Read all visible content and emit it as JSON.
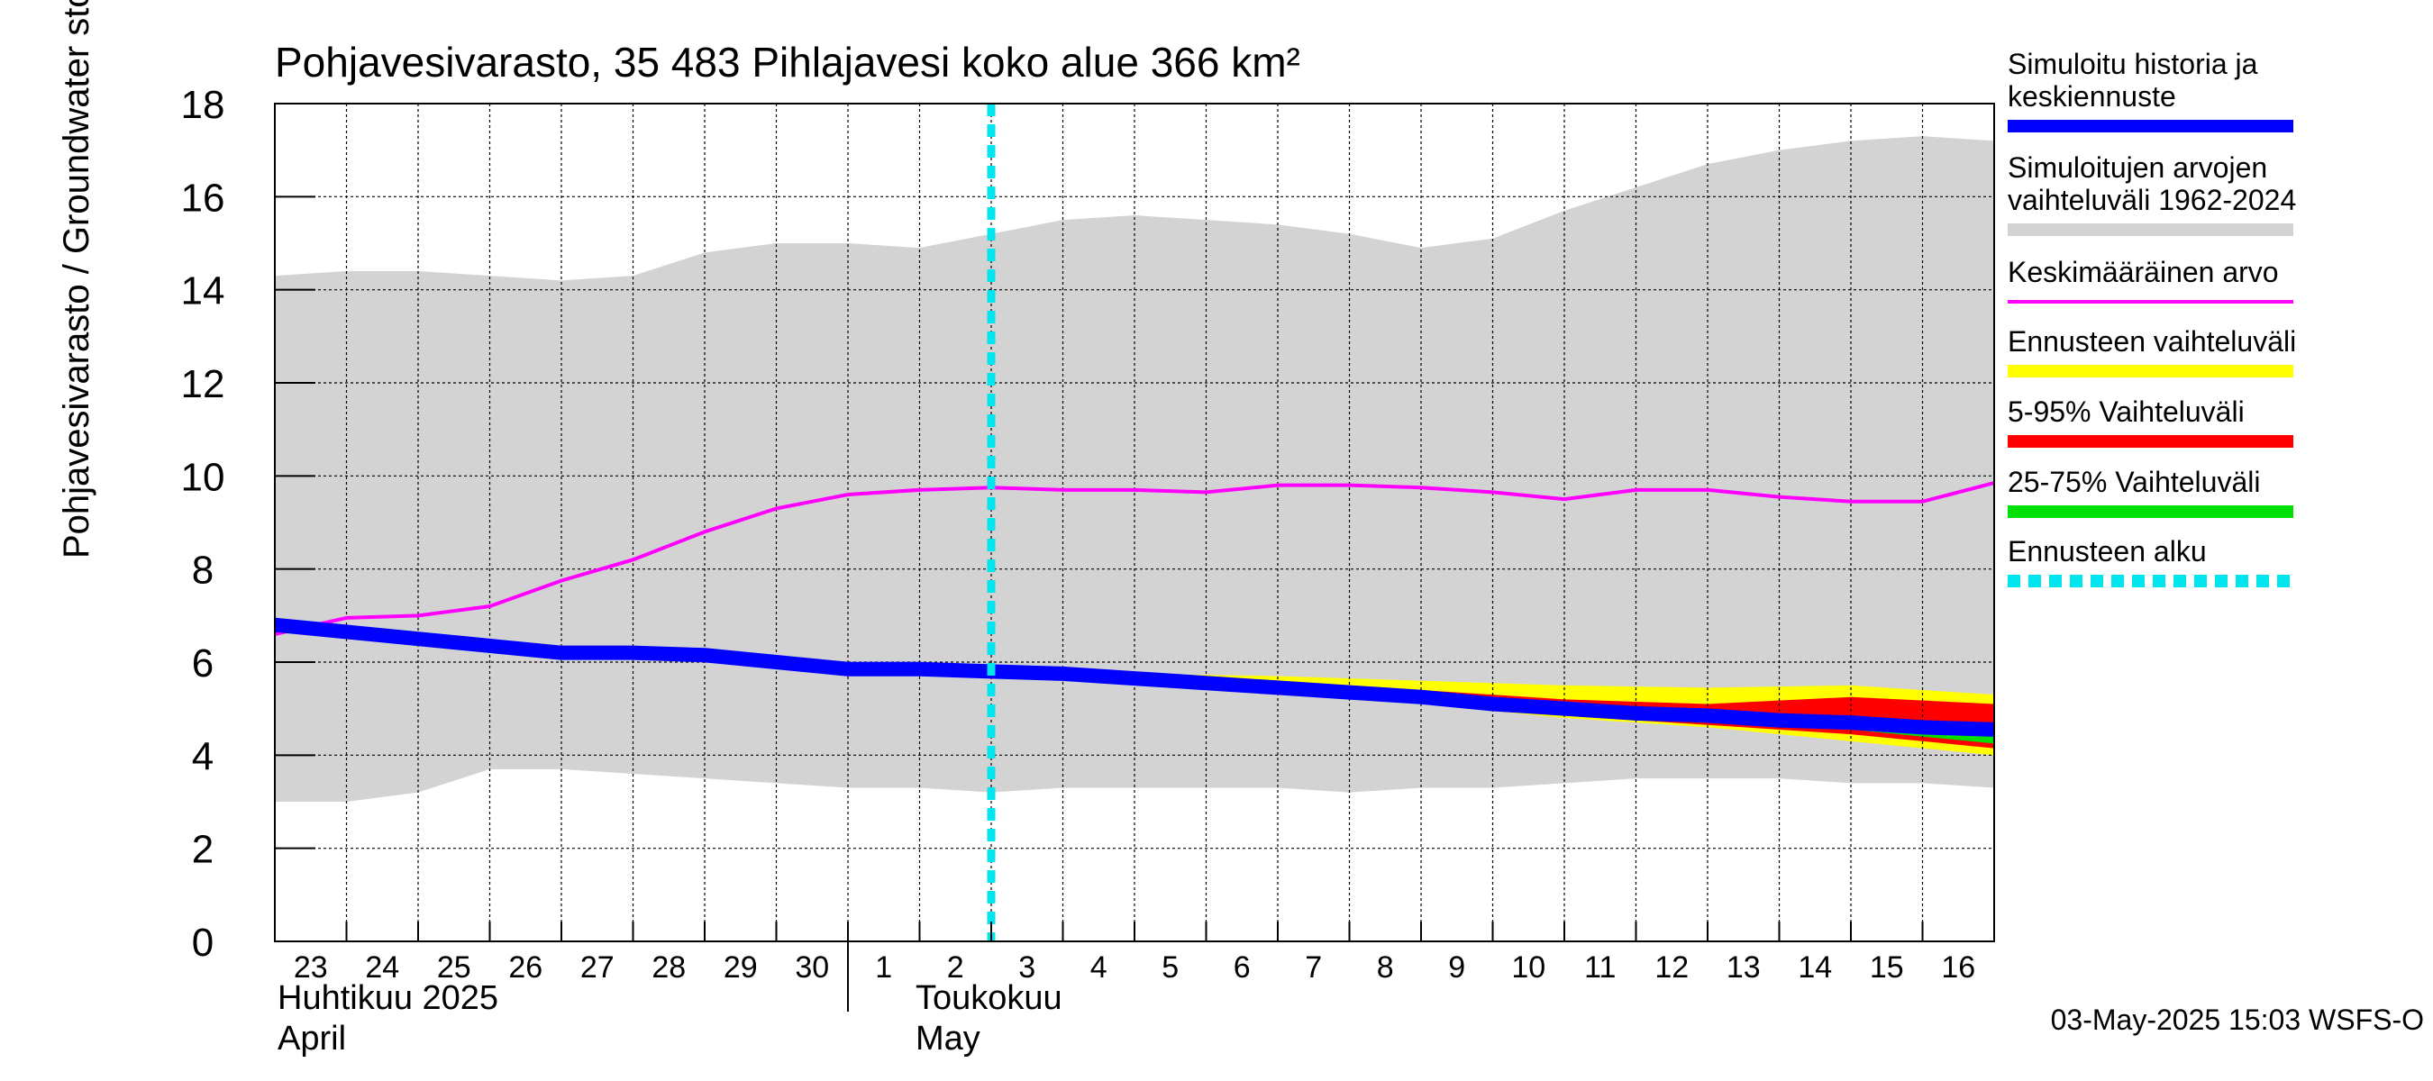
{
  "chart_data": {
    "type": "area",
    "title": "Pohjavesivarasto, 35 483 Pihlajavesi koko alue 366 km²",
    "ylabel": "Pohjavesivarasto / Groundwater storage   mm",
    "ylim": [
      0,
      18
    ],
    "yticks": [
      "0",
      "2",
      "4",
      "6",
      "8",
      "10",
      "12",
      "14",
      "16",
      "18"
    ],
    "grid": true,
    "xlim": [
      0,
      24
    ],
    "x_tick_labels": [
      "23",
      "24",
      "25",
      "26",
      "27",
      "28",
      "29",
      "30",
      "1",
      "2",
      "3",
      "4",
      "5",
      "6",
      "7",
      "8",
      "9",
      "10",
      "11",
      "12",
      "13",
      "14",
      "15",
      "16"
    ],
    "month_labels": [
      {
        "line1": "Huhtikuu  2025",
        "line2": "April",
        "x": 0
      },
      {
        "line1": "Toukokuu",
        "line2": "May",
        "x": 8
      }
    ],
    "forecast_start_x": 10,
    "series": [
      {
        "name": "Simuloitujen arvojen vaihteluväli 1962-2024",
        "kind": "band",
        "color": "#d3d3d3",
        "x": [
          0,
          1,
          2,
          3,
          4,
          5,
          6,
          7,
          8,
          9,
          10,
          11,
          12,
          13,
          14,
          15,
          16,
          17,
          18,
          19,
          20,
          21,
          22,
          23,
          24
        ],
        "upper": [
          14.3,
          14.4,
          14.4,
          14.3,
          14.2,
          14.3,
          14.8,
          15.0,
          15.0,
          14.9,
          15.2,
          15.5,
          15.6,
          15.5,
          15.4,
          15.2,
          14.9,
          15.1,
          15.7,
          16.2,
          16.7,
          17.0,
          17.2,
          17.3,
          17.2
        ],
        "lower": [
          3.0,
          3.0,
          3.2,
          3.7,
          3.7,
          3.6,
          3.5,
          3.4,
          3.3,
          3.3,
          3.2,
          3.3,
          3.3,
          3.3,
          3.3,
          3.2,
          3.3,
          3.3,
          3.4,
          3.5,
          3.5,
          3.5,
          3.4,
          3.4,
          3.3
        ]
      },
      {
        "name": "Ennusteen vaihteluväli",
        "kind": "band",
        "color": "#ffff00",
        "x": [
          10,
          12,
          14,
          16,
          18,
          20,
          22,
          24
        ],
        "upper": [
          5.8,
          5.75,
          5.7,
          5.6,
          5.5,
          5.45,
          5.5,
          5.3
        ],
        "lower": [
          5.8,
          5.6,
          5.4,
          5.1,
          4.8,
          4.6,
          4.3,
          4.0
        ]
      },
      {
        "name": "5-95% Vaihteluväli",
        "kind": "band",
        "color": "#ff0000",
        "x": [
          10,
          12,
          14,
          16,
          18,
          20,
          22,
          24
        ],
        "upper": [
          5.8,
          5.7,
          5.6,
          5.4,
          5.2,
          5.1,
          5.25,
          5.1
        ],
        "lower": [
          5.8,
          5.6,
          5.35,
          5.15,
          4.85,
          4.65,
          4.45,
          4.15
        ]
      },
      {
        "name": "25-75% Vaihteluväli",
        "kind": "band",
        "color": "#00e000",
        "x": [
          10,
          12,
          14,
          16,
          18,
          20,
          22,
          24
        ],
        "upper": [
          5.8,
          5.7,
          5.5,
          5.3,
          5.05,
          4.85,
          4.7,
          4.7
        ],
        "lower": [
          5.8,
          5.65,
          5.4,
          5.15,
          4.9,
          4.7,
          4.55,
          4.25
        ]
      },
      {
        "name": "Keskimääräinen arvo",
        "kind": "line",
        "color": "#ff00ff",
        "x": [
          0,
          1,
          2,
          3,
          4,
          5,
          6,
          7,
          8,
          9,
          10,
          11,
          12,
          13,
          14,
          15,
          16,
          17,
          18,
          19,
          20,
          21,
          22,
          23,
          24
        ],
        "values": [
          6.6,
          6.95,
          7.0,
          7.2,
          7.75,
          8.2,
          8.8,
          9.3,
          9.6,
          9.7,
          9.75,
          9.7,
          9.7,
          9.65,
          9.8,
          9.8,
          9.75,
          9.65,
          9.5,
          9.7,
          9.7,
          9.55,
          9.45,
          9.45,
          9.85
        ]
      },
      {
        "name": "Simuloitu historia ja keskiennuste",
        "kind": "line",
        "color": "#0000ff",
        "x": [
          0,
          1,
          2,
          3,
          4,
          5,
          6,
          7,
          8,
          9,
          10,
          11,
          12,
          13,
          14,
          15,
          16,
          17,
          18,
          19,
          20,
          21,
          22,
          23,
          24
        ],
        "values": [
          6.8,
          6.65,
          6.5,
          6.35,
          6.2,
          6.2,
          6.15,
          6.0,
          5.85,
          5.85,
          5.8,
          5.75,
          5.65,
          5.55,
          5.45,
          5.35,
          5.25,
          5.1,
          5.0,
          4.9,
          4.85,
          4.75,
          4.7,
          4.6,
          4.55
        ]
      }
    ],
    "legend": {
      "placement": "right",
      "entries": [
        {
          "line1": "Simuloitu historia ja",
          "line2": "keskiennuste",
          "color": "#0000ff",
          "style": "solid"
        },
        {
          "line1": "Simuloitujen arvojen",
          "line2": "vaihteluväli 1962-2024",
          "color": "#d3d3d3",
          "style": "solid"
        },
        {
          "line1": "Keskimääräinen arvo",
          "line2": "",
          "color": "#ff00ff",
          "style": "solid"
        },
        {
          "line1": "Ennusteen vaihteluväli",
          "line2": "",
          "color": "#ffff00",
          "style": "solid"
        },
        {
          "line1": "5-95% Vaihteluväli",
          "line2": "",
          "color": "#ff0000",
          "style": "solid"
        },
        {
          "line1": "25-75% Vaihteluväli",
          "line2": "",
          "color": "#00e000",
          "style": "solid"
        },
        {
          "line1": "Ennusteen alku",
          "line2": "",
          "color": "#00e5ee",
          "style": "dashed"
        }
      ]
    },
    "footer": "03-May-2025 15:03 WSFS-O"
  }
}
